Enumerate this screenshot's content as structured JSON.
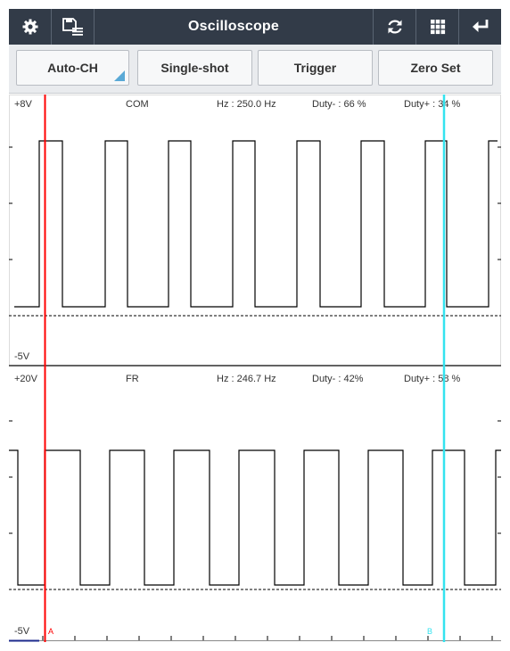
{
  "header": {
    "title": "Oscilloscope",
    "icons": [
      "gear-icon",
      "save-list-icon",
      "refresh-icon",
      "grid-icon",
      "back-icon"
    ]
  },
  "toolbar": {
    "auto_ch": "Auto-CH",
    "single_shot": "Single-shot",
    "trigger": "Trigger",
    "zero_set": "Zero Set"
  },
  "channels": [
    {
      "max_label": "+8V",
      "min_label": "-5V",
      "name": "COM",
      "freq": "Hz : 250.0 Hz",
      "duty_minus": "Duty- : 66 %",
      "duty_plus": "Duty+ : 34 %"
    },
    {
      "max_label": "+20V",
      "min_label": "-5V",
      "name": "FR",
      "freq": "Hz : 246.7 Hz",
      "duty_minus": "Duty- : 42%",
      "duty_plus": "Duty+ : 58 %"
    }
  ],
  "cursors": {
    "a_label": "A",
    "b_label": "B",
    "a_color": "#ff0000",
    "b_color": "#34e3ef"
  }
}
